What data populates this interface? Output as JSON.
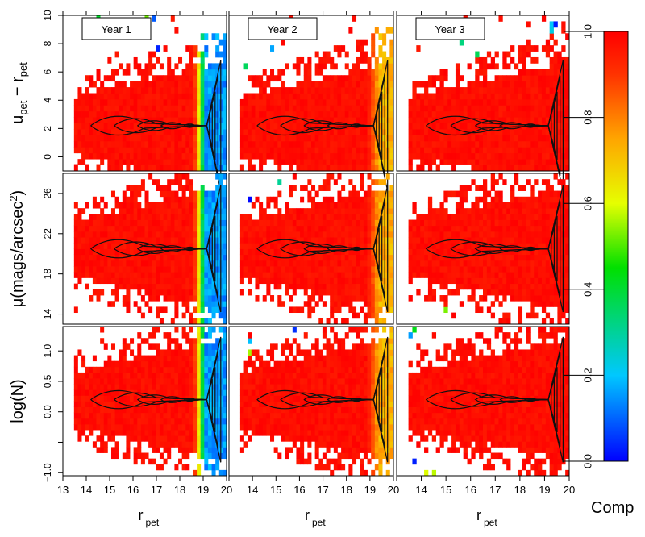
{
  "chart_data": {
    "type": "heatmap",
    "layout": "3x3 panel grid with shared axes",
    "colorscale": "rainbow (blue=0 → cyan → green → yellow → orange → red=1)",
    "panel_titles": [
      "Year 1",
      "Year 2",
      "Year 3"
    ],
    "xlabel": "r",
    "xlabel_sub": "pet",
    "xlim": [
      13,
      20
    ],
    "xticks": [
      13,
      14,
      15,
      16,
      17,
      18,
      19,
      20
    ],
    "rows": [
      {
        "ylabel_parts": [
          "u",
          "pet",
          " − r",
          "pet"
        ],
        "ylim": [
          -1,
          10
        ],
        "yticks": [
          0,
          2,
          4,
          6,
          8,
          10
        ],
        "ridge": 2.2
      },
      {
        "ylabel_parts": [
          "μ(mags/arcsec",
          "2",
          ")"
        ],
        "ylim": [
          13,
          28
        ],
        "yticks": [
          14,
          18,
          22,
          26
        ],
        "ridge": 20.5
      },
      {
        "ylabel_parts": [
          "log(N)"
        ],
        "ylim": [
          -1.05,
          1.4
        ],
        "yticks": [
          -1.0,
          -0.5,
          0.0,
          0.5,
          1.0
        ],
        "ytick_labels": [
          "−1.0",
          "",
          "0.0",
          "0.5",
          "1.0"
        ],
        "ridge": 0.2
      }
    ],
    "completeness_drop_rpet": [
      18.6,
      18.9,
      19.6
    ],
    "completeness_floor": [
      0.1,
      0.68,
      0.95
    ],
    "colorbar": {
      "label": "Comp",
      "range": [
        0,
        1
      ],
      "ticks": [
        0.0,
        0.2,
        0.4,
        0.6,
        0.8,
        1.0
      ],
      "tick_labels": [
        "0.0",
        "0.2",
        "0.4",
        "0.6",
        "0.8",
        "1.0"
      ]
    }
  }
}
